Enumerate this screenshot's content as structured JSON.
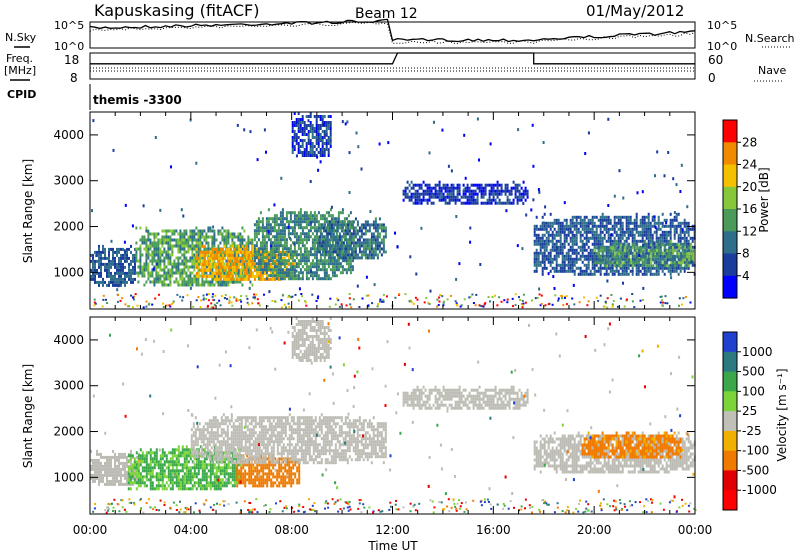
{
  "header": {
    "station": "Kapuskasing (fitACF)",
    "beam": "Beam 12",
    "date": "01/May/2012"
  },
  "side_labels": {
    "nsky": "N.Sky",
    "freq_line1": "Freq.",
    "freq_line2": "[MHz]",
    "cpid": "CPID",
    "nsearch": "N.Search",
    "nave": "Nave"
  },
  "cpid_text": "themis -3300",
  "colors": {
    "power_scale": [
      "#0000ff",
      "#1a3c9c",
      "#2e6e8a",
      "#4a9a5a",
      "#86c83a",
      "#f5c000",
      "#f08a00",
      "#ff0000"
    ],
    "velocity_scale": [
      "#2040d0",
      "#2a7a80",
      "#3aa84a",
      "#7ad43a",
      "#c0c0b8",
      "#f0b000",
      "#f07a00",
      "#e00000",
      "#ff0000"
    ],
    "ground_scatter": "#bcbcb4"
  },
  "chart_data": [
    {
      "type": "line",
      "panel": "noise",
      "ylabel_left": "N.Sky",
      "ylabel_right": "N.Search",
      "left_ticks": [
        "10^5",
        "10^0"
      ],
      "right_ticks": [
        "10^5",
        "10^0"
      ],
      "x": [
        "00:00",
        "04:00",
        "08:00",
        "12:00",
        "16:00",
        "20:00",
        "00:00"
      ]
    },
    {
      "type": "line",
      "panel": "frequency",
      "ylabel_left": "Freq. [MHz]",
      "ylabel_right": "Nave",
      "left_ticks": [
        "18",
        "8"
      ],
      "right_ticks": [
        "60",
        "0"
      ],
      "series": [
        {
          "name": "Nave",
          "x_hours": [
            0,
            12,
            12.2,
            17.6,
            17.6,
            24
          ],
          "values": [
            35,
            35,
            60,
            60,
            35,
            35
          ]
        }
      ]
    },
    {
      "type": "heatmap",
      "panel": "power",
      "ylabel": "Slant Range [km]",
      "yticks": [
        "1000",
        "2000",
        "3000",
        "4000"
      ],
      "ylim": [
        200,
        4500
      ],
      "xlim_hours": [
        0,
        24
      ],
      "colorbar_label": "Power [dB]",
      "colorbar_ticks": [
        "4",
        "8",
        "12",
        "16",
        "20",
        "24",
        "28"
      ],
      "regions": [
        {
          "t": [
            0,
            1.8
          ],
          "r": [
            700,
            1600
          ],
          "level": 8
        },
        {
          "t": [
            1.8,
            6.5
          ],
          "r": [
            700,
            2000
          ],
          "level": 14
        },
        {
          "t": [
            4.2,
            8.2
          ],
          "r": [
            800,
            1600
          ],
          "level": 24
        },
        {
          "t": [
            6.5,
            10.5
          ],
          "r": [
            800,
            2400
          ],
          "level": 12
        },
        {
          "t": [
            9,
            11.8
          ],
          "r": [
            1300,
            2200
          ],
          "level": 10
        },
        {
          "t": [
            8,
            9.6
          ],
          "r": [
            3500,
            4500
          ],
          "level": 6
        },
        {
          "t": [
            12.4,
            17.4
          ],
          "r": [
            2500,
            3000
          ],
          "level": 5
        },
        {
          "t": [
            17.6,
            24
          ],
          "r": [
            900,
            2300
          ],
          "level": 8
        },
        {
          "t": [
            20,
            24
          ],
          "r": [
            1100,
            1700
          ],
          "level": 14
        }
      ]
    },
    {
      "type": "heatmap",
      "panel": "velocity",
      "ylabel": "Slant Range [km]",
      "yticks": [
        "1000",
        "2000",
        "3000",
        "4000"
      ],
      "ylim": [
        200,
        4500
      ],
      "xlim_hours": [
        0,
        24
      ],
      "xticks": [
        "00:00",
        "04:00",
        "08:00",
        "12:00",
        "16:00",
        "20:00",
        "00:00"
      ],
      "xlabel": "Time UT",
      "colorbar_label": "Velocity [m s⁻¹]",
      "colorbar_ticks": [
        "1000",
        "500",
        "100",
        "25",
        "-25",
        "-100",
        "-500",
        "-1000"
      ],
      "regions": [
        {
          "t": [
            0,
            2
          ],
          "r": [
            800,
            1600
          ],
          "vel": 0,
          "gs": true
        },
        {
          "t": [
            1.5,
            6
          ],
          "r": [
            700,
            1700
          ],
          "vel": 120
        },
        {
          "t": [
            5.8,
            8.3
          ],
          "r": [
            800,
            1500
          ],
          "vel": -180
        },
        {
          "t": [
            4,
            11.8
          ],
          "r": [
            1300,
            2400
          ],
          "vel": 0,
          "gs": true
        },
        {
          "t": [
            8,
            9.6
          ],
          "r": [
            3500,
            4500
          ],
          "vel": 0,
          "gs": true
        },
        {
          "t": [
            12.4,
            17.4
          ],
          "r": [
            2500,
            3000
          ],
          "vel": 0,
          "gs": true
        },
        {
          "t": [
            17.6,
            24
          ],
          "r": [
            1100,
            2000
          ],
          "vel": 0,
          "gs": true
        },
        {
          "t": [
            19.5,
            23.5
          ],
          "r": [
            1400,
            2000
          ],
          "vel": -140
        }
      ]
    }
  ]
}
